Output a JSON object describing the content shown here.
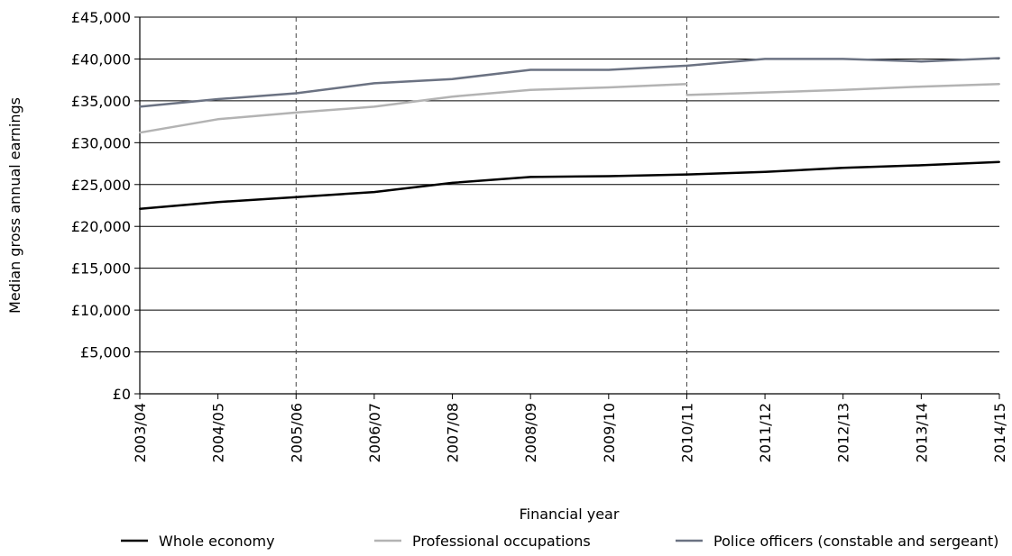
{
  "chart_data": {
    "type": "line",
    "title": "",
    "xlabel": "Financial year",
    "ylabel": "Median gross annual earnings",
    "categories": [
      "2003/04",
      "2004/05",
      "2005/06",
      "2006/07",
      "2007/08",
      "2008/09",
      "2009/10",
      "2010/11",
      "2011/12",
      "2012/13",
      "2013/14",
      "2014/15"
    ],
    "ylim": [
      0,
      45000
    ],
    "yticks": [
      0,
      5000,
      10000,
      15000,
      20000,
      25000,
      30000,
      35000,
      40000,
      45000
    ],
    "ytick_labels": [
      "£0",
      "£5,000",
      "£10,000",
      "£15,000",
      "£20,000",
      "£25,000",
      "£30,000",
      "£35,000",
      "£40,000",
      "£45,000"
    ],
    "grid": "horizontal",
    "reference_lines_x": [
      "2005/06",
      "2010/11"
    ],
    "legend_position": "bottom",
    "series": [
      {
        "name": "Whole economy",
        "color": "#000000",
        "segments": [
          {
            "x": [
              "2003/04",
              "2004/05",
              "2005/06",
              "2006/07",
              "2007/08",
              "2008/09",
              "2009/10",
              "2010/11",
              "2011/12",
              "2012/13",
              "2013/14",
              "2014/15"
            ],
            "values": [
              22100,
              22900,
              23500,
              24100,
              25200,
              25900,
              26000,
              26200,
              26500,
              27000,
              27300,
              27700
            ]
          }
        ]
      },
      {
        "name": "Professional occupations",
        "color": "#b3b3b3",
        "segments": [
          {
            "x": [
              "2003/04",
              "2004/05",
              "2005/06",
              "2006/07",
              "2007/08",
              "2008/09",
              "2009/10",
              "2010/11"
            ],
            "values": [
              31200,
              32800,
              33600,
              34300,
              35500,
              36300,
              36600,
              37000
            ]
          },
          {
            "x": [
              "2010/11",
              "2011/12",
              "2012/13",
              "2013/14",
              "2014/15"
            ],
            "values": [
              35700,
              36000,
              36300,
              36700,
              37000
            ]
          }
        ]
      },
      {
        "name": "Police officers (constable and sergeant)",
        "color": "#6b7282",
        "segments": [
          {
            "x": [
              "2003/04",
              "2004/05",
              "2005/06",
              "2006/07",
              "2007/08",
              "2008/09",
              "2009/10",
              "2010/11",
              "2011/12",
              "2012/13",
              "2013/14",
              "2014/15"
            ],
            "values": [
              34300,
              35200,
              35900,
              37100,
              37600,
              38700,
              38700,
              39200,
              40000,
              40000,
              39700,
              40100
            ]
          }
        ]
      }
    ]
  }
}
